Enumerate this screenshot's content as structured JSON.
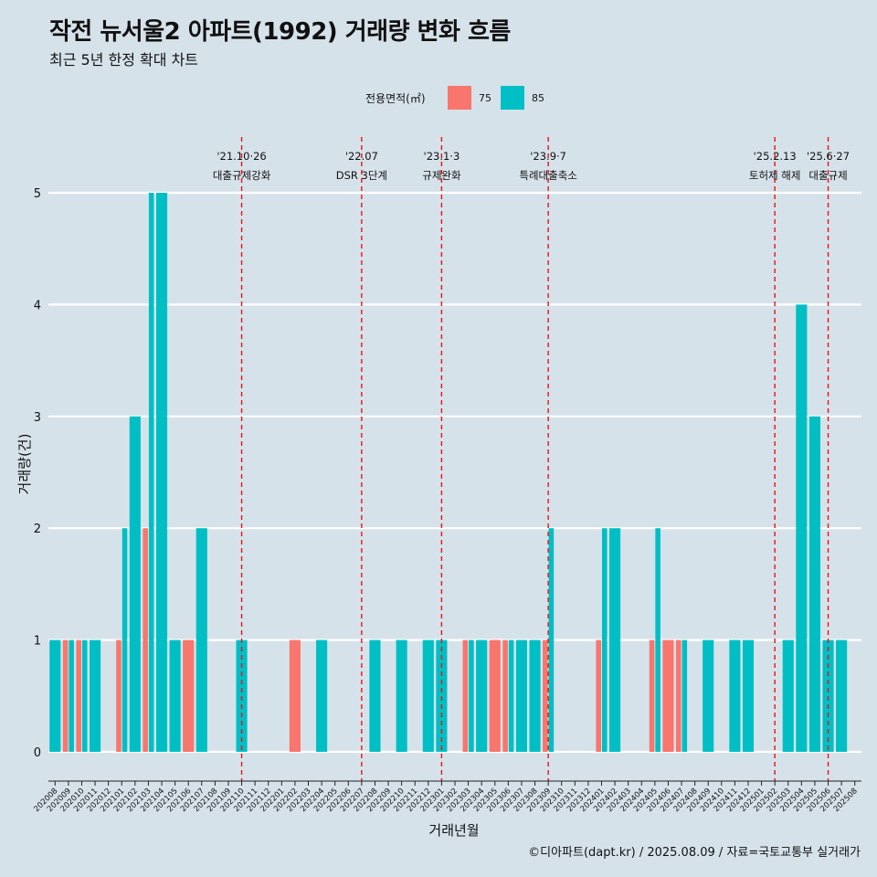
{
  "header": {
    "title": "작전 뉴서울2 아파트(1992) 거래량 변화 흐름",
    "subtitle": "최근 5년 한정 확대 차트"
  },
  "caption": "©디아파트(dapt.kr) / 2025.08.09 / 자료=국토교통부 실거래가",
  "colors": {
    "area_75": "#f8766d",
    "area_85": "#00bfc4",
    "background": "#d6e2ea",
    "annotation": "#ee1111"
  },
  "chart_data": {
    "type": "bar",
    "xlabel": "거래년월",
    "ylabel": "거래량(건)",
    "ylim": [
      0,
      5
    ],
    "yticks": [
      0,
      1,
      2,
      3,
      4,
      5
    ],
    "grid": "horizontal",
    "legend": {
      "title": "전용면적(㎡)",
      "position": "top",
      "entries": [
        "75",
        "85"
      ]
    },
    "categories": [
      "202008",
      "202009",
      "202010",
      "202011",
      "202012",
      "202101",
      "202102",
      "202103",
      "202104",
      "202105",
      "202106",
      "202107",
      "202108",
      "202109",
      "202110",
      "202111",
      "202112",
      "202201",
      "202202",
      "202203",
      "202204",
      "202205",
      "202206",
      "202207",
      "202208",
      "202209",
      "202210",
      "202211",
      "202212",
      "202301",
      "202302",
      "202303",
      "202304",
      "202305",
      "202306",
      "202307",
      "202308",
      "202309",
      "202310",
      "202311",
      "202312",
      "202401",
      "202402",
      "202403",
      "202404",
      "202405",
      "202406",
      "202407",
      "202408",
      "202409",
      "202410",
      "202411",
      "202412",
      "202501",
      "202502",
      "202503",
      "202504",
      "202505",
      "202506",
      "202507",
      "202508"
    ],
    "series": [
      {
        "name": "75",
        "values": [
          0,
          1,
          1,
          0,
          0,
          1,
          0,
          2,
          0,
          0,
          1,
          0,
          0,
          0,
          0,
          0,
          0,
          0,
          1,
          0,
          0,
          0,
          0,
          0,
          0,
          0,
          0,
          0,
          0,
          0,
          0,
          1,
          0,
          1,
          1,
          0,
          0,
          1,
          0,
          0,
          0,
          1,
          0,
          0,
          0,
          1,
          1,
          1,
          0,
          0,
          0,
          0,
          0,
          0,
          0,
          0,
          0,
          0,
          0,
          0,
          0
        ]
      },
      {
        "name": "85",
        "values": [
          1,
          1,
          1,
          1,
          0,
          2,
          3,
          5,
          5,
          1,
          0,
          2,
          0,
          0,
          1,
          0,
          0,
          0,
          0,
          0,
          1,
          0,
          0,
          0,
          1,
          0,
          1,
          0,
          1,
          1,
          0,
          1,
          1,
          0,
          1,
          1,
          1,
          2,
          0,
          0,
          0,
          2,
          2,
          0,
          0,
          2,
          0,
          1,
          0,
          1,
          0,
          1,
          1,
          0,
          0,
          1,
          4,
          3,
          1,
          1,
          0
        ]
      }
    ],
    "annotations": [
      {
        "month": "202110",
        "label_top": "'21.10·26",
        "label_bottom": "대출규제강화"
      },
      {
        "month": "202207",
        "label_top": "'22.07",
        "label_bottom": "DSR 3단계"
      },
      {
        "month": "202301",
        "label_top": "'23.1·3",
        "label_bottom": "규제완화"
      },
      {
        "month": "202309",
        "label_top": "'23.9·7",
        "label_bottom": "특례대출축소"
      },
      {
        "month": "202502",
        "label_top": "'25.2.13",
        "label_bottom": "토허제 해제"
      },
      {
        "month": "202506",
        "label_top": "'25.6·27",
        "label_bottom": "대출규제"
      }
    ]
  }
}
